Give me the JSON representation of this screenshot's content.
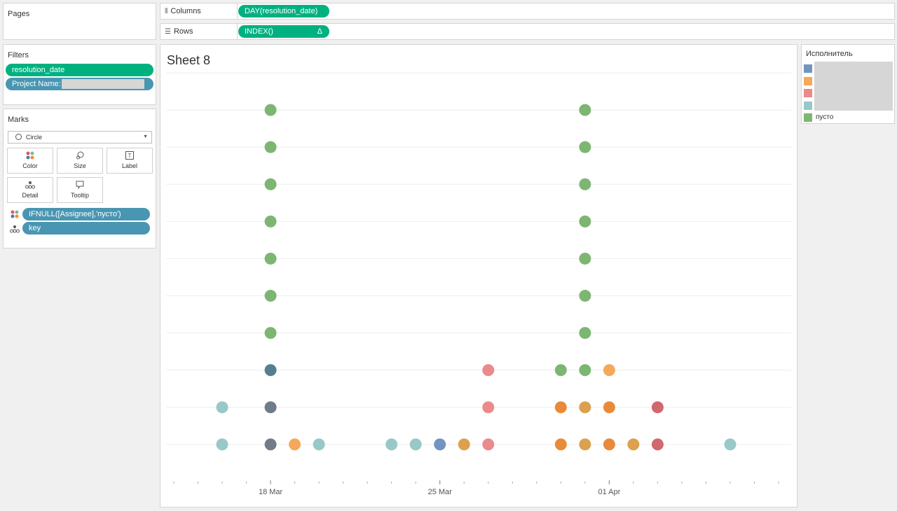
{
  "pages": {
    "title": "Pages"
  },
  "shelves": {
    "columns_label": "Columns",
    "columns_pill": "DAY(resolution_date)",
    "rows_label": "Rows",
    "rows_pill": "INDEX()",
    "rows_delta": "Δ"
  },
  "filters": {
    "title": "Filters",
    "items": [
      "resolution_date",
      "Project Name:"
    ]
  },
  "marks": {
    "title": "Marks",
    "mark_type": "Circle",
    "buttons": [
      "Color",
      "Size",
      "Label",
      "Detail",
      "Tooltip"
    ],
    "fields": [
      "IFNULL([Assignee],'пусто')",
      "key"
    ]
  },
  "legend": {
    "title": "Исполнитель",
    "items": [
      {
        "label": "",
        "color": "#7394bf"
      },
      {
        "label": "",
        "color": "#f5a85a"
      },
      {
        "label": "",
        "color": "#ea8a8c"
      },
      {
        "label": "",
        "color": "#98c8c8"
      },
      {
        "label": "пусто",
        "color": "#7db672"
      }
    ]
  },
  "chart_data": {
    "type": "scatter",
    "title": "Sheet 8",
    "x_ticks": [
      "18 Mar",
      "25 Mar",
      "01 Apr"
    ],
    "x_range": [
      "2024-03-14",
      "2024-04-08"
    ],
    "y_range": [
      0,
      11
    ],
    "grid": true,
    "points": [
      {
        "x": "2024-03-16",
        "y": 1,
        "color": "#98c8c8"
      },
      {
        "x": "2024-03-16",
        "y": 2,
        "color": "#98c8c8"
      },
      {
        "x": "2024-03-18",
        "y": 1,
        "color": "#727b89"
      },
      {
        "x": "2024-03-18",
        "y": 2,
        "color": "#727b89"
      },
      {
        "x": "2024-03-18",
        "y": 3,
        "color": "#557f91"
      },
      {
        "x": "2024-03-18",
        "y": 4,
        "color": "#7db672"
      },
      {
        "x": "2024-03-18",
        "y": 5,
        "color": "#7db672"
      },
      {
        "x": "2024-03-18",
        "y": 6,
        "color": "#7db672"
      },
      {
        "x": "2024-03-18",
        "y": 7,
        "color": "#7db672"
      },
      {
        "x": "2024-03-18",
        "y": 8,
        "color": "#7db672"
      },
      {
        "x": "2024-03-18",
        "y": 9,
        "color": "#7db672"
      },
      {
        "x": "2024-03-18",
        "y": 10,
        "color": "#7db672"
      },
      {
        "x": "2024-03-19",
        "y": 1,
        "color": "#f5a85a"
      },
      {
        "x": "2024-03-20",
        "y": 1,
        "color": "#98c8c8"
      },
      {
        "x": "2024-03-23",
        "y": 1,
        "color": "#98c8c8"
      },
      {
        "x": "2024-03-24",
        "y": 1,
        "color": "#98c8c8"
      },
      {
        "x": "2024-03-25",
        "y": 1,
        "color": "#7394bf"
      },
      {
        "x": "2024-03-26",
        "y": 1,
        "color": "#dca04e"
      },
      {
        "x": "2024-03-27",
        "y": 1,
        "color": "#ea8a8c"
      },
      {
        "x": "2024-03-27",
        "y": 2,
        "color": "#ea8a8c"
      },
      {
        "x": "2024-03-27",
        "y": 3,
        "color": "#ea8a8c"
      },
      {
        "x": "2024-03-30",
        "y": 1,
        "color": "#e98a3a"
      },
      {
        "x": "2024-03-30",
        "y": 2,
        "color": "#e98a3a"
      },
      {
        "x": "2024-03-30",
        "y": 3,
        "color": "#7db672"
      },
      {
        "x": "2024-03-31",
        "y": 1,
        "color": "#dca04e"
      },
      {
        "x": "2024-03-31",
        "y": 2,
        "color": "#dca04e"
      },
      {
        "x": "2024-03-31",
        "y": 3,
        "color": "#7db672"
      },
      {
        "x": "2024-03-31",
        "y": 4,
        "color": "#7db672"
      },
      {
        "x": "2024-03-31",
        "y": 5,
        "color": "#7db672"
      },
      {
        "x": "2024-03-31",
        "y": 6,
        "color": "#7db672"
      },
      {
        "x": "2024-03-31",
        "y": 7,
        "color": "#7db672"
      },
      {
        "x": "2024-03-31",
        "y": 8,
        "color": "#7db672"
      },
      {
        "x": "2024-03-31",
        "y": 9,
        "color": "#7db672"
      },
      {
        "x": "2024-03-31",
        "y": 10,
        "color": "#7db672"
      },
      {
        "x": "2024-04-01",
        "y": 1,
        "color": "#e98a3a"
      },
      {
        "x": "2024-04-01",
        "y": 2,
        "color": "#e98a3a"
      },
      {
        "x": "2024-04-01",
        "y": 3,
        "color": "#f5a85a"
      },
      {
        "x": "2024-04-02",
        "y": 1,
        "color": "#dca04e"
      },
      {
        "x": "2024-04-03",
        "y": 1,
        "color": "#d0686e"
      },
      {
        "x": "2024-04-03",
        "y": 2,
        "color": "#d0686e"
      },
      {
        "x": "2024-04-06",
        "y": 1,
        "color": "#98c8c8"
      }
    ]
  }
}
